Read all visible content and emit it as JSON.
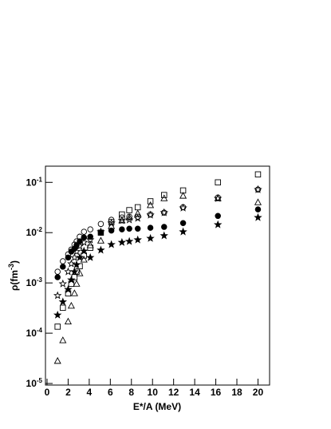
{
  "chart_data": {
    "type": "scatter",
    "log_y": true,
    "x_label": "E*/A (MeV)",
    "y_label": {
      "text": "ρ(fm",
      "sup": "-3",
      "tail": ")"
    },
    "xlim": [
      -0.15,
      21.1
    ],
    "ylim": [
      9.3e-06,
      0.21
    ],
    "xticks": [
      0,
      2,
      4,
      6,
      8,
      10,
      12,
      14,
      16,
      18,
      20
    ],
    "yticks": [
      {
        "value": 1e-05,
        "label": "10",
        "exponent": "-5"
      },
      {
        "value": 0.0001,
        "label": "10",
        "exponent": "-4"
      },
      {
        "value": 0.001,
        "label": "10",
        "exponent": "-3"
      },
      {
        "value": 0.01,
        "label": "10",
        "exponent": "-2"
      },
      {
        "value": 0.1,
        "label": "10",
        "exponent": "-1"
      }
    ],
    "x": [
      1,
      1.5,
      2,
      2.3,
      2.6,
      2.8,
      3.1,
      3.5,
      4.1,
      5.1,
      6.1,
      7.1,
      7.8,
      8.6,
      9.8,
      11.1,
      12.9,
      16.2,
      20
    ],
    "series": [
      {
        "marker": "open-square",
        "color": "#000",
        "values": [
          0.000135,
          0.00032,
          0.00062,
          0.00096,
          0.0013,
          0.00167,
          0.00215,
          0.0035,
          0.005,
          0.01,
          0.0162,
          0.023,
          0.028,
          0.032,
          0.042,
          0.056,
          0.069,
          0.1,
          0.144
        ]
      },
      {
        "marker": "open-triangle",
        "color": "#000",
        "values": [
          2.8e-05,
          7.2e-05,
          0.00017,
          0.00035,
          0.00062,
          0.00096,
          0.00155,
          0.0029,
          0.0056,
          0.0069,
          0.0134,
          0.0174,
          0.02,
          0.024,
          0.035,
          0.048,
          0.054,
          0.048,
          0.04
        ]
      },
      {
        "marker": "open-circle",
        "color": "#000",
        "values": [
          0.00167,
          0.0027,
          0.0037,
          0.0046,
          0.0058,
          0.0067,
          0.0083,
          0.0104,
          0.0116,
          0.0149,
          0.018,
          0.02,
          0.0208,
          0.0208,
          0.023,
          0.025,
          0.032,
          0.05,
          0.072
        ]
      },
      {
        "marker": "open-star",
        "color": "#000",
        "values": [
          0.00056,
          0.00096,
          0.00167,
          0.0024,
          0.0032,
          0.0042,
          0.0054,
          0.0064,
          0.0072,
          0.0104,
          0.0155,
          0.0174,
          0.018,
          0.0193,
          0.0224,
          0.025,
          0.031,
          0.048,
          0.072
        ]
      },
      {
        "marker": "filled-circle",
        "color": "#000",
        "values": [
          0.0013,
          0.0021,
          0.0032,
          0.0042,
          0.0048,
          0.0056,
          0.0067,
          0.008,
          0.0083,
          0.01,
          0.011,
          0.0116,
          0.012,
          0.012,
          0.0125,
          0.013,
          0.0155,
          0.0215,
          0.029
        ]
      },
      {
        "marker": "filled-star",
        "color": "#000",
        "values": [
          0.00023,
          0.00042,
          0.00074,
          0.00115,
          0.00167,
          0.0023,
          0.0032,
          0.0043,
          0.0032,
          0.0045,
          0.0058,
          0.0064,
          0.0067,
          0.0072,
          0.0077,
          0.0087,
          0.0104,
          0.0144,
          0.02
        ]
      }
    ]
  }
}
